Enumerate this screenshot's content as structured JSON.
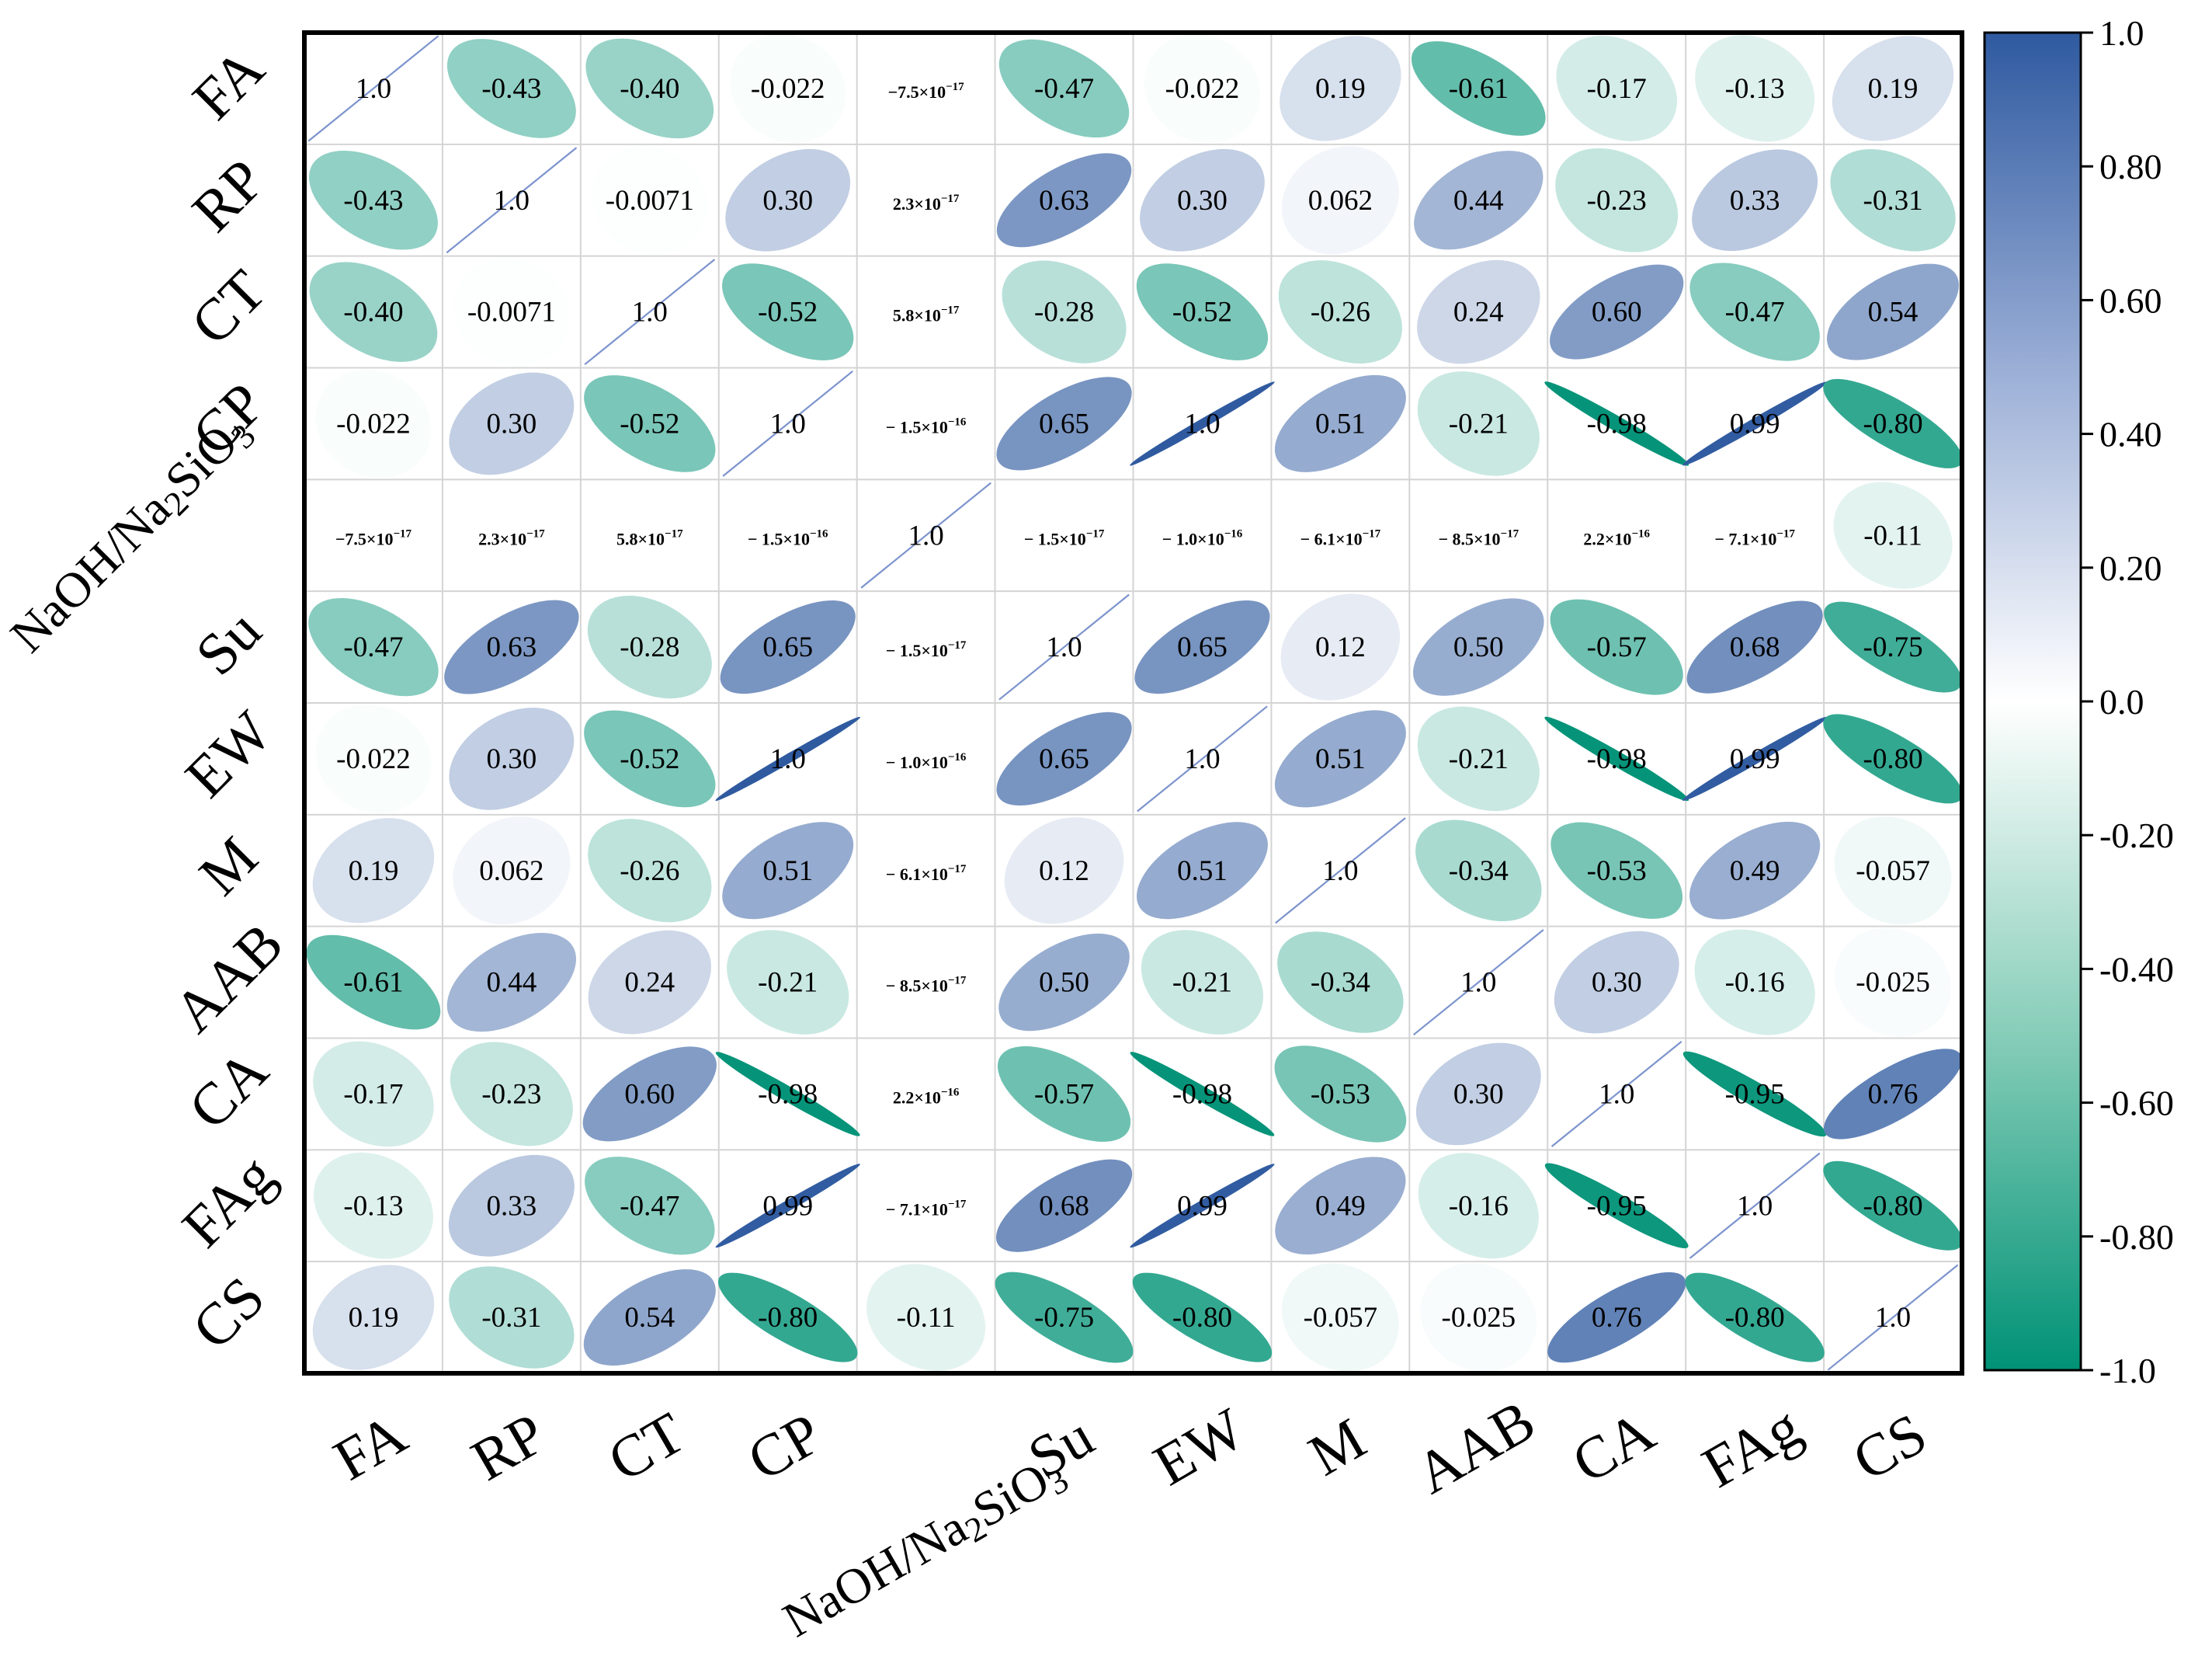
{
  "chart_data": {
    "type": "heatmap",
    "subtype": "correlation-ellipse-matrix",
    "title": "",
    "variables": [
      {
        "name": "FA"
      },
      {
        "name": "RP"
      },
      {
        "name": "CT"
      },
      {
        "name": "CP"
      },
      {
        "name": "NaOH/Na",
        "sub": "2",
        "post": "SiO",
        "sub2": "3"
      },
      {
        "name": "Su"
      },
      {
        "name": "EW"
      },
      {
        "name": "M"
      },
      {
        "name": "AAB"
      },
      {
        "name": "CA"
      },
      {
        "name": "FAg"
      },
      {
        "name": "CS"
      }
    ],
    "matrix": [
      [
        1.0,
        -0.43,
        -0.4,
        -0.022,
        -7.5e-17,
        -0.47,
        -0.022,
        0.19,
        -0.61,
        -0.17,
        -0.13,
        0.19
      ],
      [
        -0.43,
        1.0,
        -0.0071,
        0.3,
        2.3e-17,
        0.63,
        0.3,
        0.062,
        0.44,
        -0.23,
        0.33,
        -0.31
      ],
      [
        -0.4,
        -0.0071,
        1.0,
        -0.52,
        5.8e-17,
        -0.28,
        -0.52,
        -0.26,
        0.24,
        0.6,
        -0.47,
        0.54
      ],
      [
        -0.022,
        0.3,
        -0.52,
        1.0,
        -1.5e-16,
        0.65,
        1.0,
        0.51,
        -0.21,
        -0.98,
        0.99,
        -0.8
      ],
      [
        -7.5e-17,
        2.3e-17,
        5.8e-17,
        -1.5e-16,
        1.0,
        -1.5e-17,
        -1e-16,
        -6.1e-17,
        -8.5e-17,
        2.2e-16,
        -7.1e-17,
        -0.11
      ],
      [
        -0.47,
        0.63,
        -0.28,
        0.65,
        -1.5e-17,
        1.0,
        0.65,
        0.12,
        0.5,
        -0.57,
        0.68,
        -0.75
      ],
      [
        -0.022,
        0.3,
        -0.52,
        1.0,
        -1e-16,
        0.65,
        1.0,
        0.51,
        -0.21,
        -0.98,
        0.99,
        -0.8
      ],
      [
        0.19,
        0.062,
        -0.26,
        0.51,
        -6.1e-17,
        0.12,
        0.51,
        1.0,
        -0.34,
        -0.53,
        0.49,
        -0.057
      ],
      [
        -0.61,
        0.44,
        0.24,
        -0.21,
        -8.5e-17,
        0.5,
        -0.21,
        -0.34,
        1.0,
        0.3,
        -0.16,
        -0.025
      ],
      [
        -0.17,
        -0.23,
        0.6,
        -0.98,
        2.2e-16,
        -0.57,
        -0.98,
        -0.53,
        0.3,
        1.0,
        -0.95,
        0.76
      ],
      [
        -0.13,
        0.33,
        -0.47,
        0.99,
        -7.1e-17,
        0.68,
        0.99,
        0.49,
        -0.16,
        -0.95,
        1.0,
        -0.8
      ],
      [
        0.19,
        -0.31,
        0.54,
        -0.8,
        -0.11,
        -0.75,
        -0.8,
        -0.057,
        -0.025,
        0.76,
        -0.8,
        1.0
      ]
    ],
    "labels": [
      [
        "1.0",
        "-0.43",
        "-0.40",
        "-0.022",
        "−7.5×10−17",
        "-0.47",
        "-0.022",
        "0.19",
        "-0.61",
        "-0.17",
        "-0.13",
        "0.19"
      ],
      [
        "-0.43",
        "1.0",
        "-0.0071",
        "0.30",
        "2.3×10−17",
        "0.63",
        "0.30",
        "0.062",
        "0.44",
        "-0.23",
        "0.33",
        "-0.31"
      ],
      [
        "-0.40",
        "-0.0071",
        "1.0",
        "-0.52",
        "5.8×10−17",
        "-0.28",
        "-0.52",
        "-0.26",
        "0.24",
        "0.60",
        "-0.47",
        "0.54"
      ],
      [
        "-0.022",
        "0.30",
        "-0.52",
        "1.0",
        "− 1.5×10−16",
        "0.65",
        "1.0",
        "0.51",
        "-0.21",
        "-0.98",
        "0.99",
        "-0.80"
      ],
      [
        "−7.5×10−17",
        "2.3×10−17",
        "5.8×10−17",
        "− 1.5×10−16",
        "1.0",
        "− 1.5×10−17",
        "− 1.0×10−16",
        "− 6.1×10−17",
        "− 8.5×10−17",
        "2.2×10−16",
        "− 7.1×10−17",
        "-0.11"
      ],
      [
        "-0.47",
        "0.63",
        "-0.28",
        "0.65",
        "− 1.5×10−17",
        "1.0",
        "0.65",
        "0.12",
        "0.50",
        "-0.57",
        "0.68",
        "-0.75"
      ],
      [
        "-0.022",
        "0.30",
        "-0.52",
        "1.0",
        "− 1.0×10−16",
        "0.65",
        "1.0",
        "0.51",
        "-0.21",
        "-0.98",
        "0.99",
        "-0.80"
      ],
      [
        "0.19",
        "0.062",
        "-0.26",
        "0.51",
        "− 6.1×10−17",
        "0.12",
        "0.51",
        "1.0",
        "-0.34",
        "-0.53",
        "0.49",
        "-0.057"
      ],
      [
        "-0.61",
        "0.44",
        "0.24",
        "-0.21",
        "− 8.5×10−17",
        "0.50",
        "-0.21",
        "-0.34",
        "1.0",
        "0.30",
        "-0.16",
        "-0.025"
      ],
      [
        "-0.17",
        "-0.23",
        "0.60",
        "-0.98",
        "2.2×10−16",
        "-0.57",
        "-0.98",
        "-0.53",
        "0.30",
        "1.0",
        "-0.95",
        "0.76"
      ],
      [
        "-0.13",
        "0.33",
        "-0.47",
        "0.99",
        "− 7.1×10−17",
        "0.68",
        "0.99",
        "0.49",
        "-0.16",
        "-0.95",
        "1.0",
        "-0.80"
      ],
      [
        "0.19",
        "-0.31",
        "0.54",
        "-0.80",
        "-0.11",
        "-0.75",
        "-0.80",
        "-0.057",
        "-0.025",
        "0.76",
        "-0.80",
        "1.0"
      ]
    ],
    "colorbar": {
      "range": [
        -1.0,
        1.0
      ],
      "ticks": [
        "1.0",
        "0.80",
        "0.60",
        "0.40",
        "0.20",
        "0.0",
        "-0.20",
        "-0.40",
        "-0.60",
        "-0.80",
        "-1.0"
      ],
      "tick_values": [
        1.0,
        0.8,
        0.6,
        0.4,
        0.2,
        0.0,
        -0.2,
        -0.4,
        -0.6,
        -0.8,
        -1.0
      ],
      "colors": {
        "positive": "#2f5aa0",
        "zero": "#ffffff",
        "negative": "#009276"
      }
    },
    "grid": true,
    "legend": "right"
  }
}
